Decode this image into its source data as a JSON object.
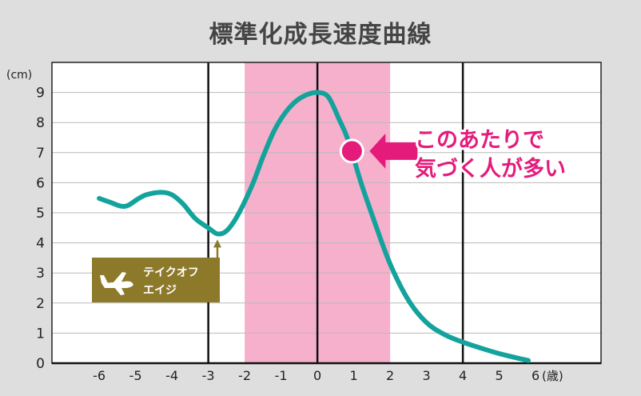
{
  "chart_data": {
    "type": "line",
    "title": "標準化成長速度曲線",
    "ylabel": "(cm)",
    "xlabel": "(歳)",
    "xlim": [
      -7.3,
      7.8
    ],
    "ylim": [
      0,
      10
    ],
    "x_ticks": [
      -6,
      -5,
      -4,
      -3,
      -2,
      -1,
      0,
      1,
      2,
      3,
      4,
      5,
      6
    ],
    "y_ticks": [
      0,
      1,
      2,
      3,
      4,
      5,
      6,
      7,
      8,
      9
    ],
    "grid": true,
    "highlight_band": {
      "x_range": [
        -2,
        2
      ],
      "color": "#f7b0cb"
    },
    "bold_vertical_lines": [
      -3,
      0,
      4
    ],
    "series": [
      {
        "color": "#13a39c",
        "points": [
          [
            -6.0,
            5.48
          ],
          [
            -5.7,
            5.35
          ],
          [
            -5.4,
            5.22
          ],
          [
            -5.2,
            5.25
          ],
          [
            -4.95,
            5.45
          ],
          [
            -4.7,
            5.6
          ],
          [
            -4.3,
            5.68
          ],
          [
            -4.0,
            5.6
          ],
          [
            -3.7,
            5.3
          ],
          [
            -3.35,
            4.8
          ],
          [
            -3.0,
            4.5
          ],
          [
            -2.75,
            4.3
          ],
          [
            -2.5,
            4.4
          ],
          [
            -2.2,
            4.9
          ],
          [
            -1.8,
            5.9
          ],
          [
            -1.5,
            6.85
          ],
          [
            -1.2,
            7.7
          ],
          [
            -0.9,
            8.3
          ],
          [
            -0.6,
            8.7
          ],
          [
            -0.3,
            8.92
          ],
          [
            0.0,
            9.0
          ],
          [
            0.3,
            8.85
          ],
          [
            0.6,
            8.1
          ],
          [
            0.85,
            7.4
          ],
          [
            1.2,
            6.0
          ],
          [
            1.6,
            4.6
          ],
          [
            2.0,
            3.3
          ],
          [
            2.5,
            2.1
          ],
          [
            3.0,
            1.35
          ],
          [
            3.5,
            0.95
          ],
          [
            4.0,
            0.7
          ],
          [
            4.5,
            0.5
          ],
          [
            5.0,
            0.32
          ],
          [
            5.5,
            0.17
          ],
          [
            5.8,
            0.09
          ]
        ]
      }
    ],
    "annotations": {
      "marker": {
        "x": 0.95,
        "y": 7.05,
        "color": "#e51b7b"
      },
      "callout_lines": [
        "このあたりで",
        "気づく人が多い"
      ],
      "callout_color": "#e51b7b",
      "takeoff": {
        "x": -2.75,
        "y": 4.3,
        "lines": [
          "テイクオフ",
          "エイジ"
        ],
        "color": "#8c7a2a"
      }
    }
  }
}
